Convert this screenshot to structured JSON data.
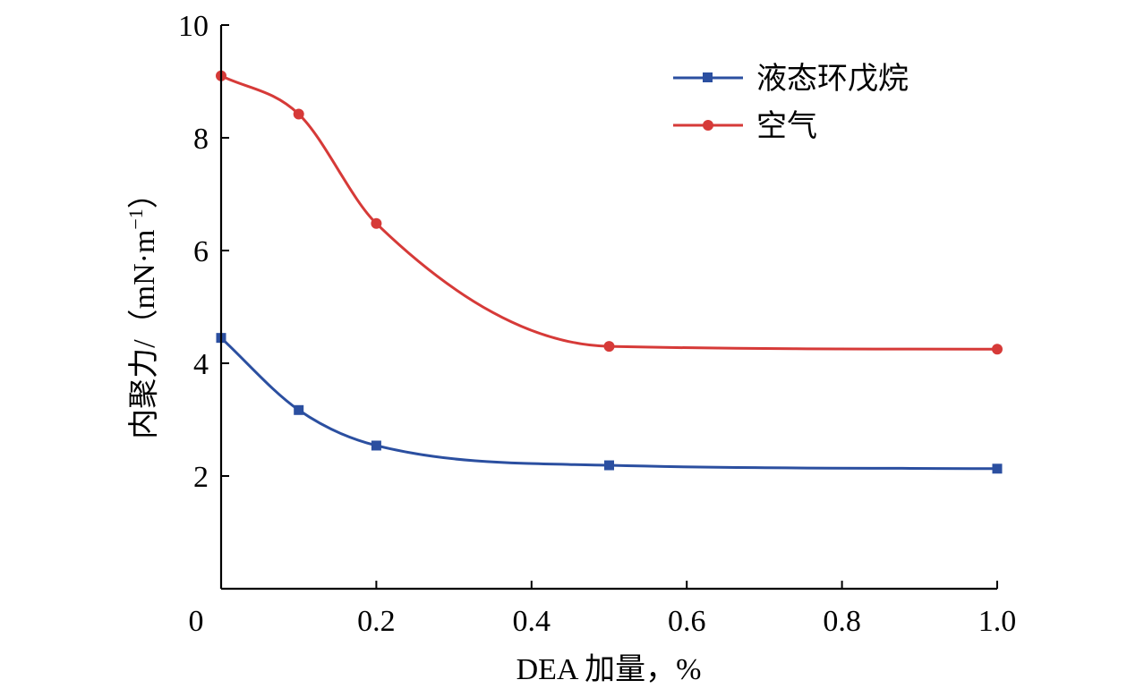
{
  "chart_data": {
    "type": "line",
    "title": "",
    "xlabel": "DEA 加量，%",
    "ylabel": "内聚力/（mN·m",
    "ylabel_sup": "−1",
    "ylabel_close": "）",
    "xlim": [
      0,
      1.0
    ],
    "ylim": [
      0,
      10
    ],
    "x_ticks": [
      0.2,
      0.4,
      0.6,
      0.8,
      1.0
    ],
    "x_tick_labels": [
      "0.2",
      "0.4",
      "0.6",
      "0.8",
      "1.0"
    ],
    "origin_label": "0",
    "y_ticks": [
      2,
      4,
      6,
      8,
      10
    ],
    "y_tick_labels": [
      "2",
      "4",
      "6",
      "8",
      "10"
    ],
    "legend_position": "top-right",
    "series": [
      {
        "name": "液态环戊烷",
        "color": "#2b4fa0",
        "marker": "square",
        "x": [
          0,
          0.1,
          0.2,
          0.5,
          1.0
        ],
        "values": [
          4.45,
          3.17,
          2.54,
          2.19,
          2.13
        ]
      },
      {
        "name": "空气",
        "color": "#d63a38",
        "marker": "circle",
        "x": [
          0,
          0.1,
          0.2,
          0.5,
          1.0
        ],
        "values": [
          9.1,
          8.42,
          6.48,
          4.3,
          4.25
        ]
      }
    ]
  }
}
